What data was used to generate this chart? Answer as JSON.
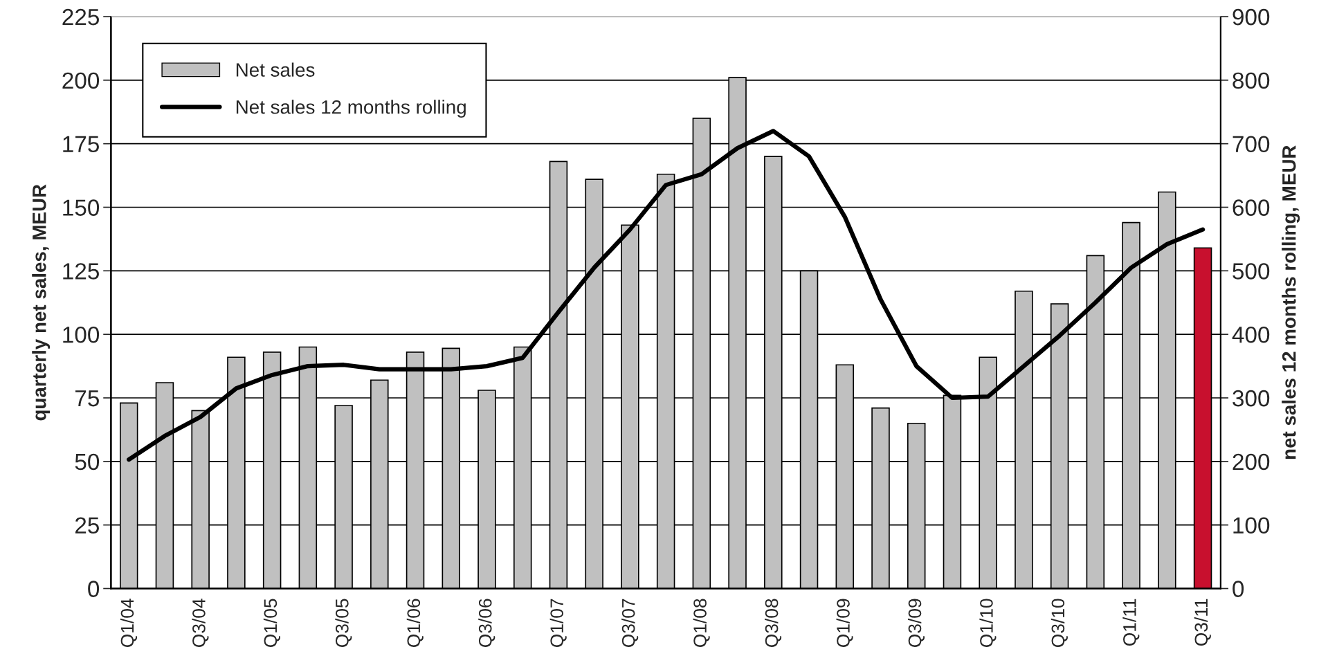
{
  "chart_data": {
    "type": "bar",
    "ylabel": "quarterly net sales, MEUR",
    "y2label": "net sales 12 months rolling, MEUR",
    "categories": [
      "Q1/04",
      null,
      "Q3/04",
      null,
      "Q1/05",
      null,
      "Q3/05",
      null,
      "Q1/06",
      null,
      "Q3/06",
      null,
      "Q1/07",
      null,
      "Q3/07",
      null,
      "Q1/08",
      null,
      "Q3/08",
      null,
      "Q1/09",
      null,
      "Q3/09",
      null,
      "Q1/10",
      null,
      "Q3/10",
      null,
      "Q1/11",
      null,
      "Q3/11"
    ],
    "series": [
      {
        "name": "Net sales",
        "color": "#c0c0c0",
        "colors": [
          "#c0c0c0",
          "#c0c0c0",
          "#c0c0c0",
          "#c0c0c0",
          "#c0c0c0",
          "#c0c0c0",
          "#c0c0c0",
          "#c0c0c0",
          "#c0c0c0",
          "#c0c0c0",
          "#c0c0c0",
          "#c0c0c0",
          "#c0c0c0",
          "#c0c0c0",
          "#c0c0c0",
          "#c0c0c0",
          "#c0c0c0",
          "#c0c0c0",
          "#c0c0c0",
          "#c0c0c0",
          "#c0c0c0",
          "#c0c0c0",
          "#c0c0c0",
          "#c0c0c0",
          "#c0c0c0",
          "#c0c0c0",
          "#c0c0c0",
          "#c0c0c0",
          "#c0c0c0",
          "#c0c0c0",
          "#c8102e"
        ],
        "values": [
          73,
          81,
          70,
          91,
          93,
          95,
          72,
          82,
          93,
          94.5,
          78,
          95,
          168,
          161,
          143,
          163,
          185,
          201,
          170,
          125,
          88,
          71,
          65,
          76,
          91,
          117,
          112,
          131,
          144,
          156,
          134
        ]
      },
      {
        "name": "Net sales 12 months rolling",
        "type": "line",
        "axis": "y2",
        "color": "#000000",
        "values": [
          203,
          240,
          270,
          315,
          336,
          350,
          352,
          345,
          345,
          345,
          350,
          363,
          435,
          505,
          565,
          635,
          652,
          693,
          720,
          680,
          585,
          455,
          350,
          300,
          302,
          350,
          398,
          450,
          505,
          542,
          565
        ]
      }
    ],
    "ylim": [
      0,
      225
    ],
    "yticks": [
      0,
      25,
      50,
      75,
      100,
      125,
      150,
      175,
      200,
      225
    ],
    "y2lim": [
      0,
      900
    ],
    "y2ticks": [
      0,
      100,
      200,
      300,
      400,
      500,
      600,
      700,
      800,
      900
    ],
    "grid": "y",
    "legend": "top left",
    "marker": "none",
    "line_style": "solid"
  }
}
